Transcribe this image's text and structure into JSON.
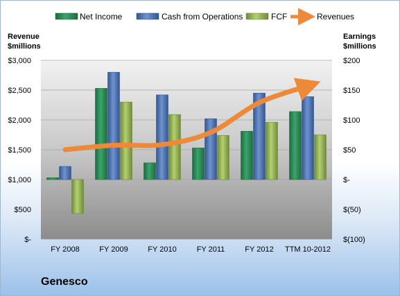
{
  "company": "Genesco",
  "left_axis_title": [
    "Revenue",
    "$millions"
  ],
  "right_axis_title": [
    "Earnings",
    "$millions"
  ],
  "legend": [
    "Net Income",
    "Cash from Operations",
    "FCF",
    "Revenues"
  ],
  "colors": {
    "net_income": "#2e8b57",
    "cash_ops": "#4f74b2",
    "fcf": "#9bbb59",
    "revenues": "#ed8a3a"
  },
  "chart_data": {
    "type": "bar",
    "categories": [
      "FY 2008",
      "FY 2009",
      "FY 2010",
      "FY 2011",
      "FY 2012",
      "TTM 10-2012"
    ],
    "series": [
      {
        "name": "Net Income",
        "axis": "right",
        "values": [
          3,
          153,
          28,
          53,
          81,
          114
        ]
      },
      {
        "name": "Cash from Operations",
        "axis": "right",
        "values": [
          22,
          180,
          142,
          102,
          145,
          139
        ]
      },
      {
        "name": "FCF",
        "axis": "right",
        "values": [
          -57,
          130,
          109,
          74,
          96,
          75
        ]
      },
      {
        "name": "Revenues",
        "type": "line",
        "axis": "left",
        "values": [
          1500,
          1575,
          1585,
          1790,
          2290,
          2570
        ]
      }
    ],
    "left_axis": {
      "ylim": [
        0,
        3000
      ],
      "ticks": [
        "$-",
        "$500",
        "$1,000",
        "$1,500",
        "$2,000",
        "$2,500",
        "$3,000"
      ]
    },
    "right_axis": {
      "ylim": [
        -100,
        200
      ],
      "ticks": [
        "$(100)",
        "$(50)",
        "$-",
        "$50",
        "$100",
        "$150",
        "$200"
      ]
    },
    "grid": true,
    "legend_position": "top"
  }
}
